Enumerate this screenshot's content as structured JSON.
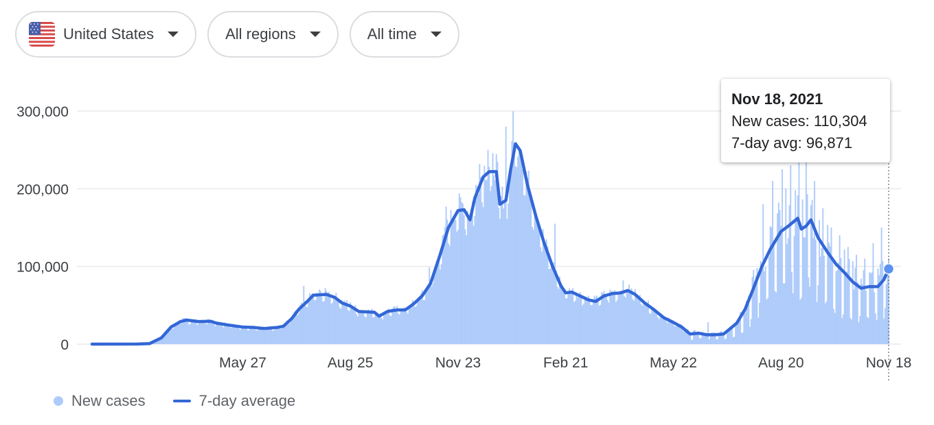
{
  "filters": {
    "country": "United States",
    "region": "All regions",
    "time": "All time",
    "country_icon": "us-flag-icon",
    "dropdown_icon": "caret-down-icon"
  },
  "colors": {
    "bars": "#aecbfa",
    "line": "#3367d6",
    "grid": "#e8eaed",
    "axis_text": "#3c4043"
  },
  "tooltip": {
    "date": "Nov 18, 2021",
    "new_cases": "New cases: 110,304",
    "avg": "7-day avg: 96,871"
  },
  "legend": {
    "new_cases": "New cases",
    "avg": "7-day average"
  },
  "chart_data": {
    "type": "bar",
    "subtype": "daily bars with 7-day moving-average line",
    "x_start": "2020-01-22",
    "x_end": "2021-11-18",
    "x_ticks": [
      {
        "date": "2020-05-27",
        "label": "May 27"
      },
      {
        "date": "2020-08-25",
        "label": "Aug 25"
      },
      {
        "date": "2020-11-23",
        "label": "Nov 23"
      },
      {
        "date": "2021-02-21",
        "label": "Feb 21"
      },
      {
        "date": "2021-05-22",
        "label": "May 22"
      },
      {
        "date": "2021-08-20",
        "label": "Aug 20"
      },
      {
        "date": "2021-11-18",
        "label": "Nov 18"
      }
    ],
    "y_ticks": [
      {
        "value": 0,
        "label": "0"
      },
      {
        "value": 100000,
        "label": "100,000"
      },
      {
        "value": 200000,
        "label": "200,000"
      },
      {
        "value": 300000,
        "label": "300,000"
      }
    ],
    "ylim": [
      0,
      300000
    ],
    "grid": true,
    "legend_position": "bottom-left",
    "series": [
      {
        "name": "7-day average",
        "points": [
          [
            "2020-01-22",
            0
          ],
          [
            "2020-02-29",
            100
          ],
          [
            "2020-03-10",
            600
          ],
          [
            "2020-03-20",
            8000
          ],
          [
            "2020-03-28",
            22000
          ],
          [
            "2020-04-05",
            29000
          ],
          [
            "2020-04-10",
            31000
          ],
          [
            "2020-04-20",
            29000
          ],
          [
            "2020-04-30",
            29500
          ],
          [
            "2020-05-05",
            27000
          ],
          [
            "2020-05-15",
            24500
          ],
          [
            "2020-05-27",
            22000
          ],
          [
            "2020-06-05",
            21500
          ],
          [
            "2020-06-14",
            20000
          ],
          [
            "2020-06-25",
            21500
          ],
          [
            "2020-06-30",
            23000
          ],
          [
            "2020-07-07",
            33000
          ],
          [
            "2020-07-13",
            45000
          ],
          [
            "2020-07-20",
            55000
          ],
          [
            "2020-07-25",
            63000
          ],
          [
            "2020-08-05",
            64000
          ],
          [
            "2020-08-12",
            60000
          ],
          [
            "2020-08-18",
            53000
          ],
          [
            "2020-08-25",
            49000
          ],
          [
            "2020-09-01",
            42000
          ],
          [
            "2020-09-08",
            41500
          ],
          [
            "2020-09-14",
            41000
          ],
          [
            "2020-09-18",
            36000
          ],
          [
            "2020-09-25",
            42000
          ],
          [
            "2020-10-03",
            44000
          ],
          [
            "2020-10-10",
            44000
          ],
          [
            "2020-10-17",
            52000
          ],
          [
            "2020-10-24",
            62000
          ],
          [
            "2020-10-31",
            78000
          ],
          [
            "2020-11-08",
            115000
          ],
          [
            "2020-11-15",
            150000
          ],
          [
            "2020-11-23",
            172000
          ],
          [
            "2020-11-28",
            173000
          ],
          [
            "2020-12-03",
            160000
          ],
          [
            "2020-12-07",
            188000
          ],
          [
            "2020-12-14",
            215000
          ],
          [
            "2020-12-19",
            222000
          ],
          [
            "2020-12-25",
            222000
          ],
          [
            "2020-12-28",
            180000
          ],
          [
            "2021-01-02",
            185000
          ],
          [
            "2021-01-06",
            225000
          ],
          [
            "2021-01-10",
            258000
          ],
          [
            "2021-01-14",
            249000
          ],
          [
            "2021-01-20",
            205000
          ],
          [
            "2021-01-27",
            165000
          ],
          [
            "2021-02-03",
            130000
          ],
          [
            "2021-02-10",
            100000
          ],
          [
            "2021-02-17",
            75000
          ],
          [
            "2021-02-21",
            66000
          ],
          [
            "2021-02-26",
            67000
          ],
          [
            "2021-03-05",
            62000
          ],
          [
            "2021-03-12",
            57000
          ],
          [
            "2021-03-18",
            55000
          ],
          [
            "2021-03-25",
            62000
          ],
          [
            "2021-04-01",
            65000
          ],
          [
            "2021-04-08",
            66000
          ],
          [
            "2021-04-14",
            69000
          ],
          [
            "2021-04-20",
            64000
          ],
          [
            "2021-04-28",
            53000
          ],
          [
            "2021-05-06",
            44000
          ],
          [
            "2021-05-14",
            34000
          ],
          [
            "2021-05-22",
            28000
          ],
          [
            "2021-05-29",
            22000
          ],
          [
            "2021-06-05",
            13000
          ],
          [
            "2021-06-12",
            14000
          ],
          [
            "2021-06-19",
            12000
          ],
          [
            "2021-06-26",
            12000
          ],
          [
            "2021-07-03",
            13000
          ],
          [
            "2021-07-07",
            18000
          ],
          [
            "2021-07-14",
            27000
          ],
          [
            "2021-07-21",
            45000
          ],
          [
            "2021-07-28",
            72000
          ],
          [
            "2021-08-04",
            100000
          ],
          [
            "2021-08-11",
            122000
          ],
          [
            "2021-08-20",
            145000
          ],
          [
            "2021-08-27",
            153000
          ],
          [
            "2021-09-03",
            162000
          ],
          [
            "2021-09-06",
            148000
          ],
          [
            "2021-09-10",
            152000
          ],
          [
            "2021-09-14",
            160000
          ],
          [
            "2021-09-20",
            137000
          ],
          [
            "2021-09-28",
            118000
          ],
          [
            "2021-10-05",
            103000
          ],
          [
            "2021-10-12",
            92000
          ],
          [
            "2021-10-19",
            80000
          ],
          [
            "2021-10-26",
            72000
          ],
          [
            "2021-11-02",
            74000
          ],
          [
            "2021-11-09",
            74000
          ],
          [
            "2021-11-14",
            83000
          ],
          [
            "2021-11-18",
            96871
          ]
        ]
      },
      {
        "name": "New cases",
        "spikes": [
          [
            "2020-07-17",
            75000
          ],
          [
            "2020-10-30",
            99000
          ],
          [
            "2020-11-13",
            177000
          ],
          [
            "2020-12-11",
            232000
          ],
          [
            "2020-12-18",
            250000
          ],
          [
            "2021-01-02",
            280000
          ],
          [
            "2021-01-08",
            300000
          ],
          [
            "2021-02-12",
            155000
          ],
          [
            "2021-04-10",
            82000
          ],
          [
            "2021-06-20",
            28000
          ],
          [
            "2021-08-05",
            180000
          ],
          [
            "2021-08-13",
            210000
          ],
          [
            "2021-08-21",
            225000
          ],
          [
            "2021-08-28",
            230000
          ],
          [
            "2021-09-04",
            245000
          ],
          [
            "2021-09-10",
            240000
          ],
          [
            "2021-09-17",
            210000
          ],
          [
            "2021-09-24",
            175000
          ],
          [
            "2021-10-01",
            150000
          ],
          [
            "2021-10-08",
            140000
          ],
          [
            "2021-10-15",
            125000
          ],
          [
            "2021-10-22",
            115000
          ],
          [
            "2021-10-29",
            110000
          ],
          [
            "2021-11-05",
            130000
          ],
          [
            "2021-11-12",
            150000
          ],
          [
            "2021-11-18",
            110304
          ]
        ]
      }
    ]
  }
}
